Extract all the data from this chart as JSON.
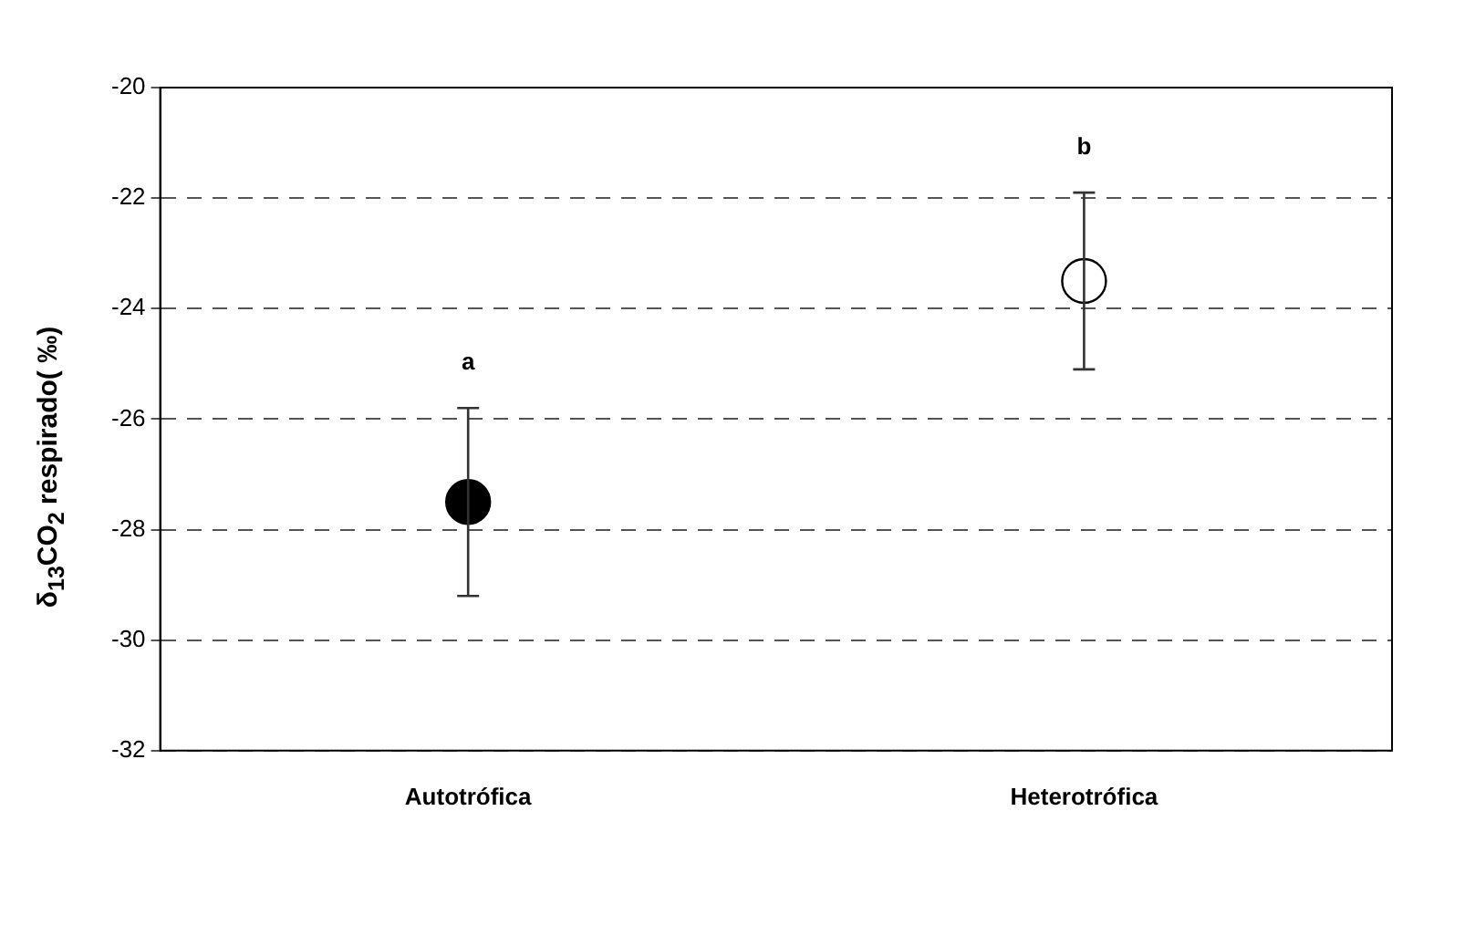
{
  "chart_data": {
    "type": "scatter",
    "ylabel": "δ$_{13}$CO$_{2}$ respirado( ‰)",
    "categories": [
      "Autotrófica",
      "Heterotrófica"
    ],
    "values": [
      -27.5,
      -23.5
    ],
    "errors": [
      1.7,
      1.6
    ],
    "colors": [
      "#000000",
      "#ffffff"
    ],
    "marker": "circle",
    "ylim": [
      -32,
      -20
    ],
    "yticks": [
      -32,
      -30,
      -28,
      -26,
      -24,
      -22,
      -20
    ],
    "grid": "y",
    "legend": false,
    "annotations": [
      {
        "text": "a",
        "x": "Autotrófica",
        "y": -25.8
      },
      {
        "text": "b",
        "x": "Heterotrófica",
        "y": -21.9
      }
    ]
  }
}
